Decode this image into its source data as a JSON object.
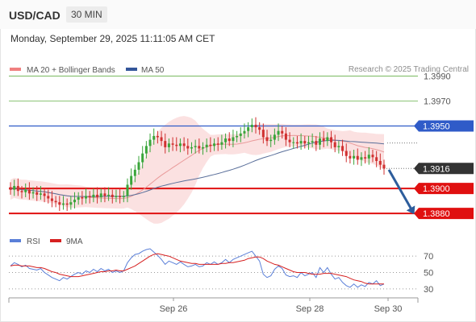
{
  "header": {
    "symbol": "USD/CAD",
    "timeframe": "30 MIN"
  },
  "datetime": "Monday, September 29, 2025 11:11:05 AM CET",
  "credit": "Research © 2025 Trading Central",
  "legend": [
    {
      "label": "MA 20 + Bollinger Bands",
      "color": "#f08080"
    },
    {
      "label": "MA 50",
      "color": "#34569a"
    }
  ],
  "colors": {
    "up": "#3aa53a",
    "down": "#d03030",
    "band_fill": "#fadcdc",
    "ma20": "#e99a9a",
    "ma50": "#5a6f9a",
    "resistance_green": "#66b04a",
    "pivot_blue": "#2f5bc8",
    "support_red": "#e01010",
    "last_price_bg": "#333333",
    "arrow": "#2d5d9c",
    "rsi": "#5a7fd8",
    "rsi_ma": "#d62020"
  },
  "chart_data": [
    {
      "type": "candlestick",
      "title": "",
      "ylim": [
        1.3864,
        1.3998
      ],
      "xticks": [
        "Sep 26",
        "Sep 28",
        "Sep 30"
      ],
      "levels": [
        {
          "value": 1.399,
          "label": "1.3990",
          "kind": "resistance"
        },
        {
          "value": 1.397,
          "label": "1.3970",
          "kind": "resistance"
        },
        {
          "value": 1.395,
          "label": "1.3950",
          "kind": "pivot"
        },
        {
          "value": 1.39,
          "label": "1.3900",
          "kind": "support"
        },
        {
          "value": 1.388,
          "label": "1.3880",
          "kind": "support"
        }
      ],
      "last_price": {
        "value": 1.3916,
        "label": "1.3916"
      },
      "forecast_arrow": {
        "from": 1.3915,
        "to": 1.3881,
        "direction": "down"
      },
      "closes": [
        1.3899,
        1.3902,
        1.3898,
        1.3897,
        1.3899,
        1.3896,
        1.3897,
        1.3895,
        1.3896,
        1.3894,
        1.3892,
        1.389,
        1.3889,
        1.3887,
        1.3888,
        1.3887,
        1.3889,
        1.3891,
        1.3893,
        1.3892,
        1.3894,
        1.3893,
        1.3895,
        1.3893,
        1.3896,
        1.3894,
        1.3895,
        1.3893,
        1.3894,
        1.3893,
        1.3894,
        1.3903,
        1.391,
        1.3915,
        1.3921,
        1.3928,
        1.3934,
        1.3939,
        1.3942,
        1.3941,
        1.3938,
        1.3933,
        1.3936,
        1.3935,
        1.3934,
        1.3936,
        1.3934,
        1.3932,
        1.3933,
        1.3934,
        1.3932,
        1.3933,
        1.3935,
        1.3934,
        1.3936,
        1.3935,
        1.3937,
        1.394,
        1.3938,
        1.3941,
        1.3942,
        1.3944,
        1.3946,
        1.3949,
        1.3951,
        1.3949,
        1.3947,
        1.3941,
        1.3938,
        1.3939,
        1.3943,
        1.3946,
        1.3944,
        1.3939,
        1.3937,
        1.3937,
        1.3936,
        1.3938,
        1.3936,
        1.3937,
        1.3938,
        1.3935,
        1.394,
        1.3938,
        1.3941,
        1.3937,
        1.3933,
        1.3934,
        1.393,
        1.3926,
        1.3924,
        1.3926,
        1.3923,
        1.3925,
        1.3924,
        1.3927,
        1.3925,
        1.3922,
        1.3919,
        1.3916
      ],
      "ma20_last": 1.3922,
      "ma50_last": 1.3939
    },
    {
      "type": "line",
      "title": "",
      "series": [
        {
          "name": "RSI",
          "values": [
            58,
            62,
            60,
            57,
            59,
            55,
            54,
            53,
            55,
            50,
            47,
            44,
            42,
            40,
            44,
            42,
            45,
            48,
            50,
            48,
            52,
            50,
            54,
            51,
            55,
            52,
            54,
            50,
            52,
            50,
            52,
            62,
            68,
            72,
            73,
            76,
            78,
            79,
            75,
            71,
            66,
            60,
            64,
            62,
            60,
            63,
            60,
            57,
            58,
            60,
            57,
            58,
            62,
            60,
            63,
            60,
            62,
            66,
            62,
            66,
            68,
            70,
            72,
            74,
            76,
            70,
            64,
            48,
            44,
            46,
            54,
            58,
            55,
            47,
            45,
            46,
            44,
            50,
            46,
            48,
            50,
            44,
            56,
            50,
            56,
            48,
            42,
            44,
            38,
            34,
            32,
            36,
            32,
            35,
            33,
            38,
            36,
            40,
            34,
            36
          ]
        },
        {
          "name": "9MA",
          "values": [
            58,
            59,
            59,
            58,
            58,
            58,
            57,
            56,
            56,
            55,
            53,
            51,
            50,
            48,
            47,
            46,
            45,
            45,
            45,
            46,
            47,
            48,
            49,
            50,
            51,
            51,
            52,
            52,
            53,
            52,
            52,
            54,
            56,
            58,
            61,
            64,
            67,
            70,
            72,
            73,
            72,
            71,
            70,
            68,
            66,
            64,
            63,
            62,
            61,
            61,
            60,
            60,
            60,
            60,
            60,
            60,
            61,
            61,
            62,
            62,
            63,
            64,
            65,
            67,
            68,
            69,
            69,
            67,
            64,
            62,
            60,
            59,
            57,
            55,
            53,
            51,
            50,
            50,
            50,
            49,
            48,
            48,
            48,
            49,
            49,
            49,
            48,
            47,
            46,
            45,
            43,
            41,
            40,
            39,
            37,
            36,
            36,
            36,
            36,
            36
          ]
        }
      ],
      "ylim": [
        25,
        80
      ],
      "levels": [
        {
          "value": 70,
          "label": "70"
        },
        {
          "value": 50,
          "label": "50"
        },
        {
          "value": 30,
          "label": "30"
        }
      ]
    }
  ]
}
